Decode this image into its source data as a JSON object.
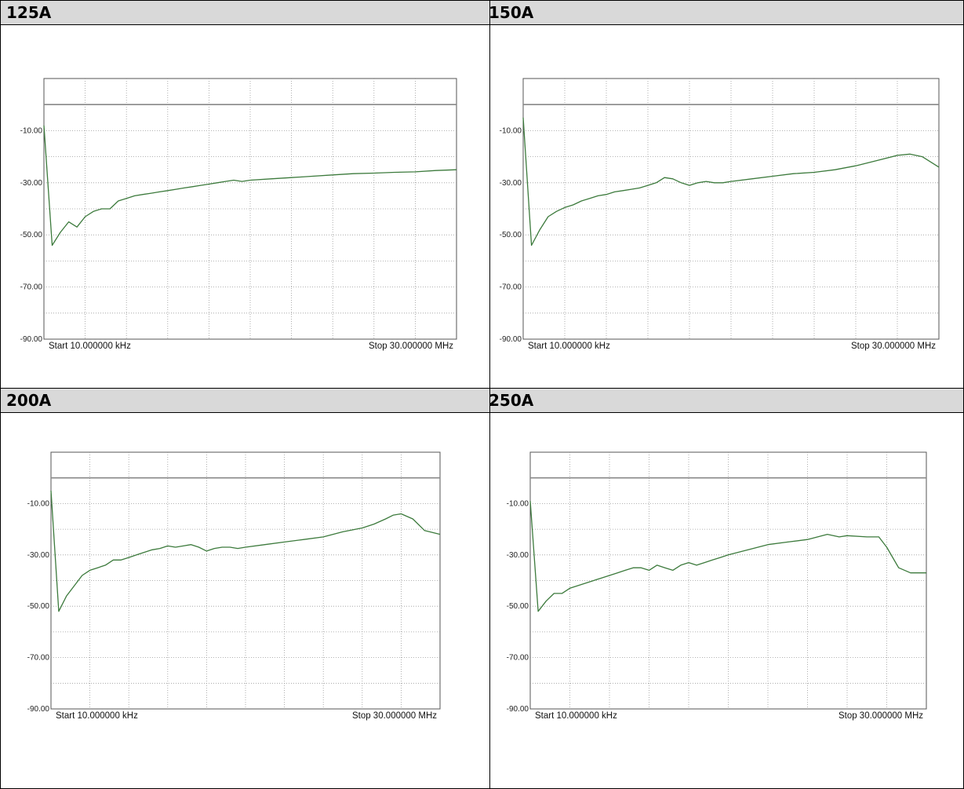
{
  "panels": [
    {
      "title": "125A"
    },
    {
      "title": "150A"
    },
    {
      "title": "200A"
    },
    {
      "title": "250A"
    }
  ],
  "chart_data": [
    {
      "type": "line",
      "title": "125A",
      "yticks": [
        "-10.00",
        "-30.00",
        "-50.00",
        "-70.00",
        "-90.00"
      ],
      "start_label": "Start 10.000000 kHz",
      "stop_label": "Stop 30.000000 MHz",
      "ylim": [
        -90,
        10
      ],
      "reference_level": 0,
      "colors": {
        "trace": "#3c7a3c",
        "reference": "#888888"
      },
      "x": [
        0,
        0.02,
        0.04,
        0.06,
        0.08,
        0.1,
        0.12,
        0.14,
        0.16,
        0.18,
        0.2,
        0.22,
        0.24,
        0.26,
        0.28,
        0.3,
        0.32,
        0.34,
        0.36,
        0.38,
        0.4,
        0.42,
        0.44,
        0.46,
        0.48,
        0.5,
        0.55,
        0.6,
        0.65,
        0.7,
        0.75,
        0.8,
        0.85,
        0.9,
        0.95,
        1.0
      ],
      "y": [
        -8,
        -54,
        -49,
        -45,
        -47,
        -43,
        -41,
        -40,
        -40,
        -37,
        -36,
        -35,
        -34.5,
        -34,
        -33.5,
        -33,
        -32.5,
        -32,
        -31.5,
        -31,
        -30.5,
        -30,
        -29.5,
        -29,
        -29.5,
        -29,
        -28.5,
        -28,
        -27.5,
        -27,
        -26.5,
        -26.3,
        -26,
        -25.8,
        -25.3,
        -25
      ]
    },
    {
      "type": "line",
      "title": "150A",
      "yticks": [
        "-10.00",
        "-30.00",
        "-50.00",
        "-70.00",
        "-90.00"
      ],
      "start_label": "Start 10.000000 kHz",
      "stop_label": "Stop 30.000000 MHz",
      "ylim": [
        -90,
        10
      ],
      "reference_level": 0,
      "colors": {
        "trace": "#3c7a3c",
        "reference": "#888888"
      },
      "x": [
        0,
        0.02,
        0.04,
        0.06,
        0.08,
        0.1,
        0.12,
        0.14,
        0.16,
        0.18,
        0.2,
        0.22,
        0.24,
        0.26,
        0.28,
        0.3,
        0.32,
        0.34,
        0.36,
        0.38,
        0.4,
        0.42,
        0.44,
        0.46,
        0.48,
        0.5,
        0.55,
        0.6,
        0.65,
        0.7,
        0.75,
        0.8,
        0.85,
        0.9,
        0.93,
        0.96,
        1.0
      ],
      "y": [
        -5,
        -54,
        -48,
        -43,
        -41,
        -39.5,
        -38.5,
        -37,
        -36,
        -35,
        -34.5,
        -33.5,
        -33,
        -32.5,
        -32,
        -31,
        -30,
        -28,
        -28.5,
        -30,
        -31,
        -30,
        -29.5,
        -30,
        -30,
        -29.5,
        -28.5,
        -27.5,
        -26.5,
        -26,
        -25,
        -23.5,
        -21.5,
        -19.5,
        -19,
        -20,
        -24
      ]
    },
    {
      "type": "line",
      "title": "200A",
      "yticks": [
        "-10.00",
        "-30.00",
        "-50.00",
        "-70.00",
        "-90.00"
      ],
      "start_label": "Start 10.000000 kHz",
      "stop_label": "Stop 30.000000 MHz",
      "ylim": [
        -90,
        10
      ],
      "reference_level": 0,
      "colors": {
        "trace": "#3c7a3c",
        "reference": "#888888"
      },
      "x": [
        0,
        0.02,
        0.04,
        0.06,
        0.08,
        0.1,
        0.12,
        0.14,
        0.16,
        0.18,
        0.2,
        0.22,
        0.24,
        0.26,
        0.28,
        0.3,
        0.32,
        0.34,
        0.36,
        0.38,
        0.4,
        0.42,
        0.44,
        0.46,
        0.48,
        0.5,
        0.55,
        0.6,
        0.65,
        0.7,
        0.75,
        0.8,
        0.83,
        0.86,
        0.88,
        0.9,
        0.93,
        0.96,
        1.0
      ],
      "y": [
        -5,
        -52,
        -46,
        -42,
        -38,
        -36,
        -35,
        -34,
        -32,
        -32,
        -31,
        -30,
        -29,
        -28,
        -27.5,
        -26.5,
        -27,
        -26.5,
        -26,
        -27,
        -28.5,
        -27.5,
        -27,
        -27,
        -27.5,
        -27,
        -26,
        -25,
        -24,
        -23,
        -21,
        -19.5,
        -18,
        -16,
        -14.5,
        -14,
        -16,
        -20.5,
        -22
      ]
    },
    {
      "type": "line",
      "title": "250A",
      "yticks": [
        "-10.00",
        "-30.00",
        "-50.00",
        "-70.00",
        "-90.00"
      ],
      "start_label": "Start 10.000000 kHz",
      "stop_label": "Stop 30.000000 MHz",
      "ylim": [
        -90,
        10
      ],
      "reference_level": 0,
      "colors": {
        "trace": "#3c7a3c",
        "reference": "#888888"
      },
      "x": [
        0,
        0.02,
        0.04,
        0.06,
        0.08,
        0.1,
        0.12,
        0.14,
        0.16,
        0.18,
        0.2,
        0.22,
        0.24,
        0.26,
        0.28,
        0.3,
        0.32,
        0.34,
        0.36,
        0.38,
        0.4,
        0.42,
        0.44,
        0.46,
        0.48,
        0.5,
        0.55,
        0.6,
        0.65,
        0.7,
        0.75,
        0.78,
        0.8,
        0.85,
        0.88,
        0.9,
        0.93,
        0.96,
        1.0
      ],
      "y": [
        -9,
        -52,
        -48,
        -45,
        -45,
        -43,
        -42,
        -41,
        -40,
        -39,
        -38,
        -37,
        -36,
        -35,
        -35,
        -36,
        -34,
        -35,
        -36,
        -34,
        -33,
        -34,
        -33,
        -32,
        -31,
        -30,
        -28,
        -26,
        -25,
        -24,
        -22,
        -23,
        -22.5,
        -23,
        -23,
        -27,
        -35,
        -37,
        -37
      ]
    }
  ]
}
